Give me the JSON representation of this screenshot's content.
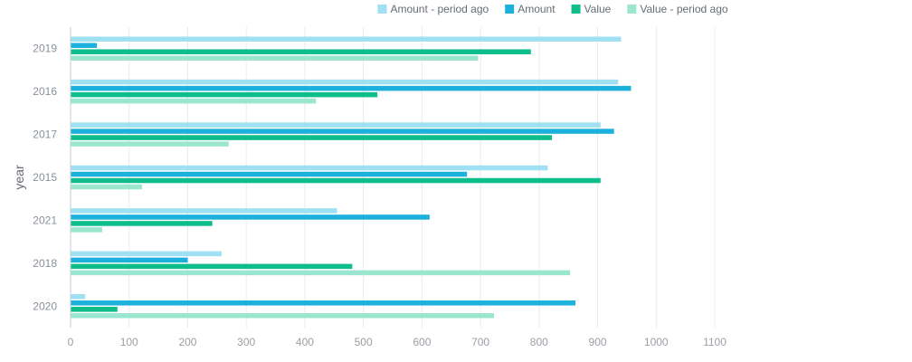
{
  "chart_data": {
    "type": "bar",
    "orientation": "horizontal",
    "ylabel": "year",
    "categories": [
      "2019",
      "2016",
      "2017",
      "2015",
      "2021",
      "2018",
      "2020"
    ],
    "series": [
      {
        "name": "Amount - period ago",
        "color": "#9fe0f2",
        "values": [
          940,
          935,
          905,
          815,
          455,
          258,
          25
        ]
      },
      {
        "name": "Amount",
        "color": "#1cb0dc",
        "values": [
          45,
          957,
          928,
          677,
          613,
          200,
          862
        ]
      },
      {
        "name": "Value",
        "color": "#0dbd8b",
        "values": [
          786,
          524,
          822,
          905,
          242,
          481,
          80
        ]
      },
      {
        "name": "Value - period ago",
        "color": "#9be6cf",
        "values": [
          696,
          419,
          270,
          122,
          54,
          853,
          723
        ]
      }
    ],
    "xlim": [
      0,
      1100
    ],
    "xticks": [
      0,
      100,
      200,
      300,
      400,
      500,
      600,
      700,
      800,
      900,
      1000,
      1100
    ],
    "grid": true,
    "legend": "top-center"
  }
}
